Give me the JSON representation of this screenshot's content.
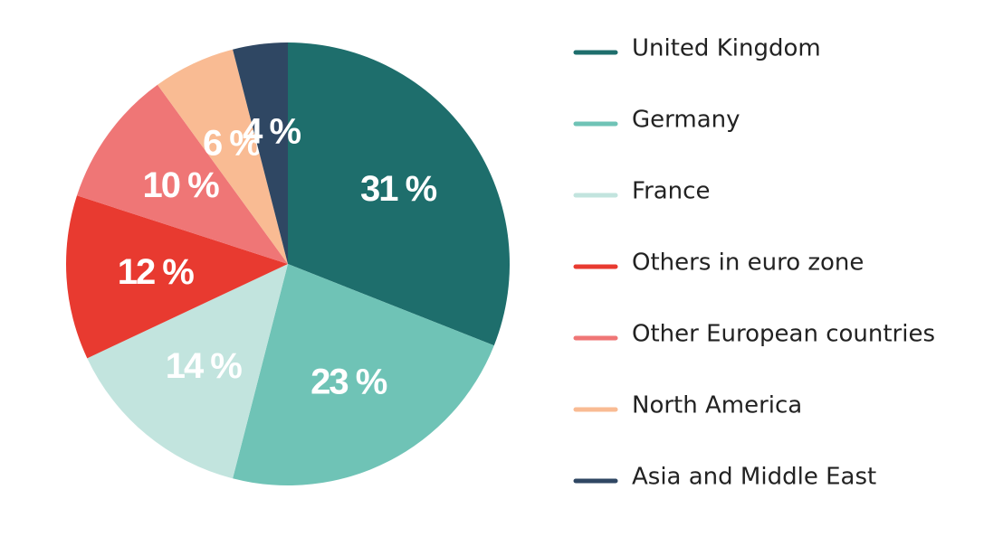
{
  "chart_data": {
    "type": "pie",
    "categories": [
      "United Kingdom",
      "Germany",
      "France",
      "Others in euro zone",
      "Other European countries",
      "North America",
      "Asia and Middle East"
    ],
    "values": [
      31,
      23,
      14,
      12,
      10,
      6,
      4
    ],
    "value_labels": [
      "31 %",
      "23 %",
      "14 %",
      "12 %",
      "10 %",
      "6 %",
      "4 %"
    ],
    "colors": [
      "#1e6e6c",
      "#6fc3b6",
      "#c2e4de",
      "#e83a30",
      "#ef7676",
      "#f9bb93",
      "#2f4763"
    ],
    "legend": "right"
  }
}
